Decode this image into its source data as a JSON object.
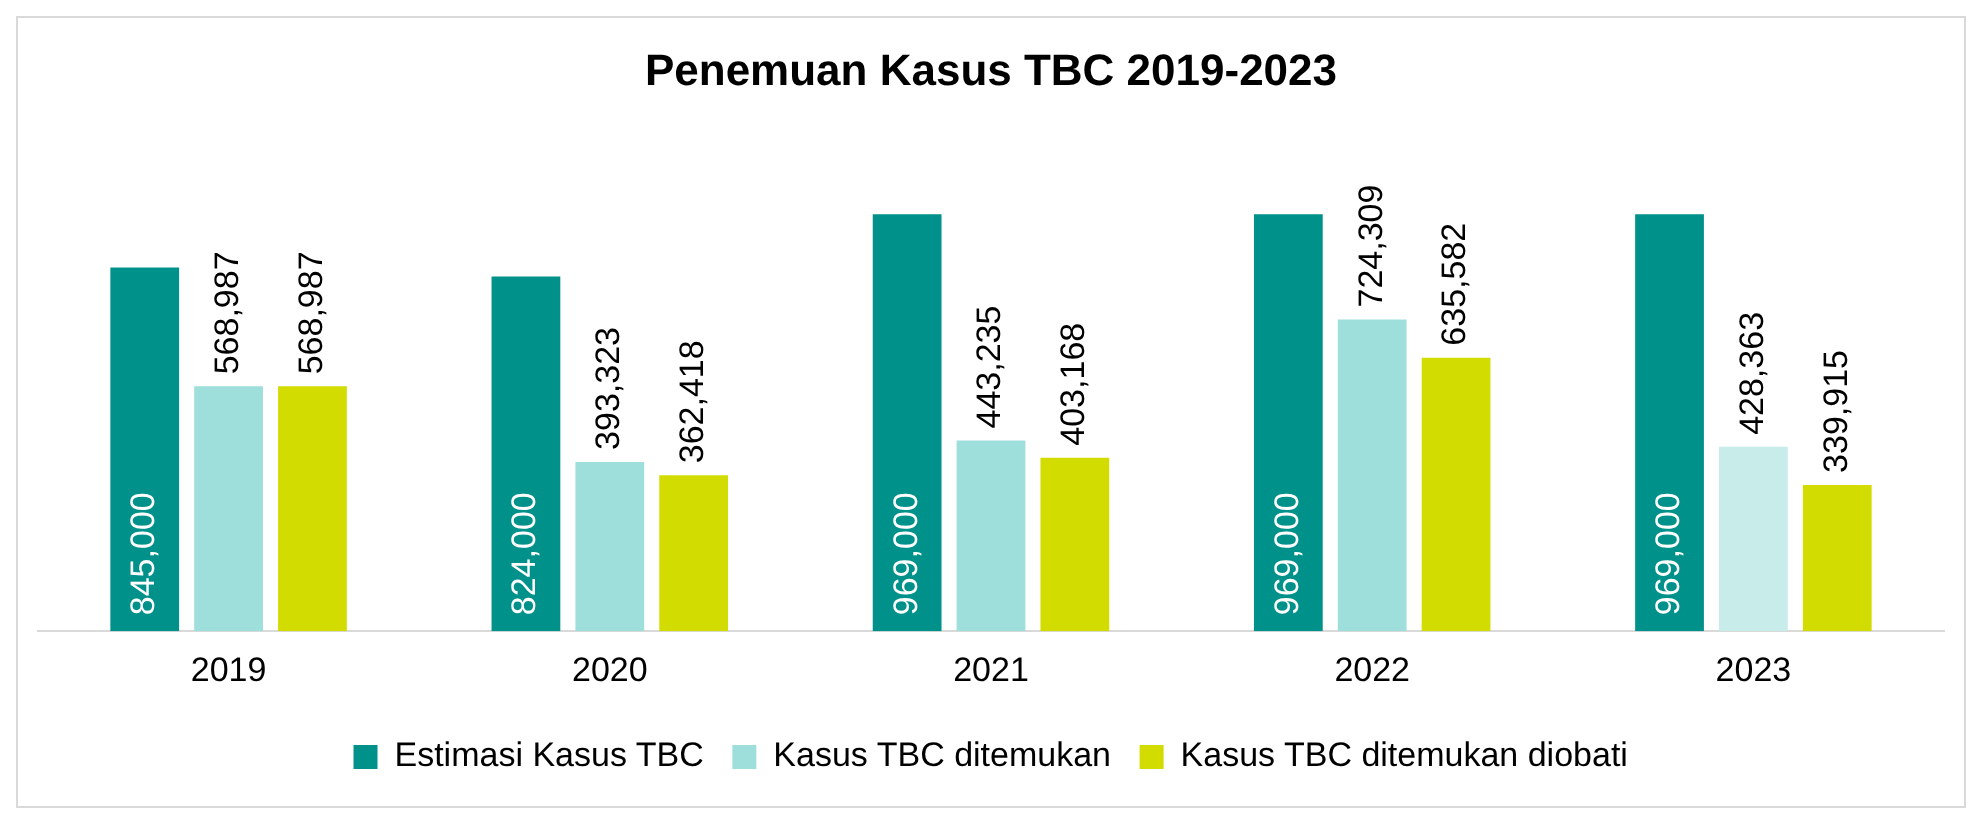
{
  "chart_data": {
    "type": "bar",
    "title": "Penemuan Kasus TBC 2019-2023",
    "categories": [
      "2019",
      "2020",
      "2021",
      "2022",
      "2023"
    ],
    "series": [
      {
        "name": "Estimasi Kasus TBC",
        "color": "#00918a",
        "values": [
          845000,
          824000,
          969000,
          969000,
          969000
        ],
        "value_labels": [
          "845,000",
          "824,000",
          "969,000",
          "969,000",
          "969,000"
        ]
      },
      {
        "name": "Kasus TBC ditemukan",
        "color": "#9edfdc",
        "colors": [
          "#9edfdc",
          "#9edfdc",
          "#9edfdc",
          "#9edfdc",
          "#c8ecea"
        ],
        "values": [
          568987,
          393323,
          443235,
          724309,
          428363
        ],
        "value_labels": [
          "568,987",
          "393,323",
          "443,235",
          "724,309",
          "428,363"
        ]
      },
      {
        "name": "Kasus TBC ditemukan diobati",
        "color": "#d3dc00",
        "values": [
          568987,
          362418,
          403168,
          635582,
          339915
        ],
        "value_labels": [
          "568,987",
          "362,418",
          "403,168",
          "635,582",
          "339,915"
        ]
      }
    ],
    "grid": false,
    "legend": "bottom"
  }
}
